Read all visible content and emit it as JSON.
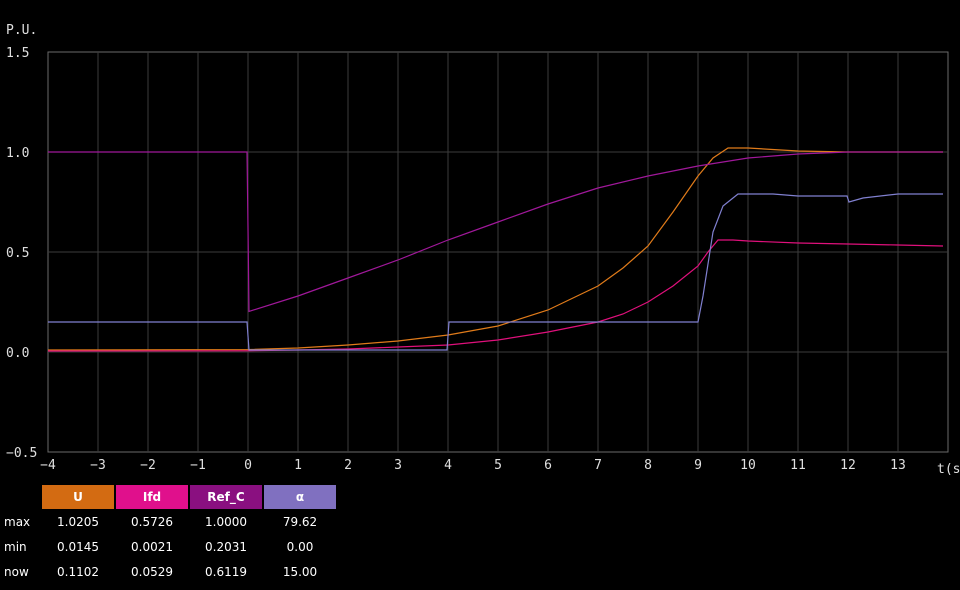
{
  "chart_data": {
    "type": "line",
    "ylabel": "P.U.",
    "xlabel": "t(s)",
    "xlim": [
      -4,
      14
    ],
    "ylim": [
      -0.5,
      1.5
    ],
    "x_ticks": [
      "−4",
      "−3",
      "−2",
      "−1",
      "0",
      "1",
      "2",
      "3",
      "4",
      "5",
      "6",
      "7",
      "8",
      "9",
      "10",
      "11",
      "12",
      "13"
    ],
    "y_ticks": [
      "1.5",
      "1.0",
      "0.5",
      "0.0",
      "−0.5"
    ],
    "grid": true,
    "series": [
      {
        "name": "U",
        "color": "#e07b1a",
        "points": [
          [
            -4,
            0.01
          ],
          [
            0,
            0.012
          ],
          [
            1,
            0.02
          ],
          [
            2,
            0.035
          ],
          [
            3,
            0.055
          ],
          [
            4,
            0.085
          ],
          [
            5,
            0.13
          ],
          [
            6,
            0.21
          ],
          [
            7,
            0.33
          ],
          [
            7.5,
            0.42
          ],
          [
            8,
            0.53
          ],
          [
            8.5,
            0.7
          ],
          [
            9,
            0.88
          ],
          [
            9.3,
            0.97
          ],
          [
            9.6,
            1.02
          ],
          [
            10,
            1.02
          ],
          [
            11,
            1.005
          ],
          [
            12,
            1.0
          ],
          [
            13,
            1.0
          ],
          [
            13.9,
            1.0
          ]
        ]
      },
      {
        "name": "Ifd",
        "color": "#e0107c",
        "points": [
          [
            -4,
            0.005
          ],
          [
            0,
            0.006
          ],
          [
            1,
            0.01
          ],
          [
            2,
            0.015
          ],
          [
            3,
            0.025
          ],
          [
            4,
            0.035
          ],
          [
            5,
            0.06
          ],
          [
            6,
            0.1
          ],
          [
            7,
            0.15
          ],
          [
            7.5,
            0.19
          ],
          [
            8,
            0.25
          ],
          [
            8.5,
            0.33
          ],
          [
            9,
            0.43
          ],
          [
            9.2,
            0.5
          ],
          [
            9.4,
            0.56
          ],
          [
            9.7,
            0.56
          ],
          [
            10,
            0.555
          ],
          [
            11,
            0.545
          ],
          [
            12,
            0.54
          ],
          [
            13,
            0.535
          ],
          [
            13.9,
            0.53
          ]
        ]
      },
      {
        "name": "Ref_C",
        "color": "#a0189a",
        "points": [
          [
            -4,
            1.0
          ],
          [
            -0.02,
            1.0
          ],
          [
            0,
            0.62
          ],
          [
            0.02,
            0.2031
          ],
          [
            1,
            0.28
          ],
          [
            2,
            0.37
          ],
          [
            3,
            0.46
          ],
          [
            4,
            0.56
          ],
          [
            5,
            0.65
          ],
          [
            6,
            0.74
          ],
          [
            7,
            0.82
          ],
          [
            8,
            0.88
          ],
          [
            9,
            0.93
          ],
          [
            10,
            0.97
          ],
          [
            11,
            0.99
          ],
          [
            12,
            1.0
          ],
          [
            13,
            1.0
          ],
          [
            13.9,
            1.0
          ]
        ]
      },
      {
        "name": "α",
        "color": "#8080d0",
        "points": [
          [
            -4,
            0.15
          ],
          [
            -0.02,
            0.15
          ],
          [
            0.02,
            0.01
          ],
          [
            3.98,
            0.01
          ],
          [
            4.02,
            0.15
          ],
          [
            9.0,
            0.15
          ],
          [
            9.1,
            0.28
          ],
          [
            9.3,
            0.6
          ],
          [
            9.5,
            0.73
          ],
          [
            9.8,
            0.79
          ],
          [
            10.5,
            0.79
          ],
          [
            11,
            0.78
          ],
          [
            11.98,
            0.78
          ],
          [
            12.02,
            0.75
          ],
          [
            12.3,
            0.77
          ],
          [
            13,
            0.79
          ],
          [
            13.9,
            0.79
          ]
        ]
      }
    ]
  },
  "legend": {
    "headers": [
      {
        "label": "U",
        "color": "#d36b12"
      },
      {
        "label": "Ifd",
        "color": "#e0108c"
      },
      {
        "label": "Ref_C",
        "color": "#8a1080"
      },
      {
        "label": "α",
        "color": "#8070c0"
      }
    ],
    "rows": [
      {
        "label": "max",
        "values": [
          "1.0205",
          "0.5726",
          "1.0000",
          "79.62"
        ]
      },
      {
        "label": "min",
        "values": [
          "0.0145",
          "0.0021",
          "0.2031",
          "0.00"
        ]
      },
      {
        "label": "now",
        "values": [
          "0.1102",
          "0.0529",
          "0.6119",
          "15.00"
        ]
      }
    ]
  }
}
